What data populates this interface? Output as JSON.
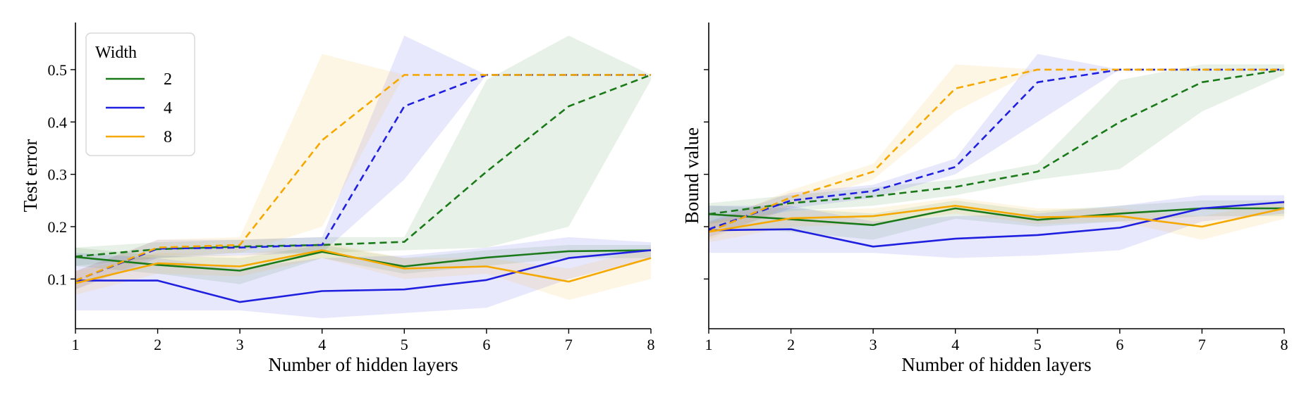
{
  "legend": {
    "title": "Width",
    "entries": [
      {
        "label": "2",
        "color": "#1a7a1a"
      },
      {
        "label": "4",
        "color": "#1f1fe0"
      },
      {
        "label": "8",
        "color": "#f5a800"
      }
    ],
    "placement": "top-left of left panel"
  },
  "chart_data": [
    {
      "type": "line",
      "xlabel": "Number of hidden layers",
      "ylabel": "Test error",
      "x": [
        1,
        2,
        3,
        4,
        5,
        6,
        7,
        8
      ],
      "xticks": [
        "1",
        "2",
        "3",
        "4",
        "5",
        "6",
        "7",
        "8"
      ],
      "yticks": [
        "0.1",
        "0.2",
        "0.3",
        "0.4",
        "0.5"
      ],
      "ytick_values": [
        0.1,
        0.2,
        0.3,
        0.4,
        0.5
      ],
      "xlim": [
        1,
        8
      ],
      "ylim": [
        0.005,
        0.59
      ],
      "grid": false,
      "series": [
        {
          "width": "2",
          "style": "solid",
          "color": "#1a7a1a",
          "values": [
            0.142,
            0.127,
            0.116,
            0.152,
            0.124,
            0.141,
            0.153,
            0.155
          ],
          "band_low": [
            0.125,
            0.11,
            0.09,
            0.14,
            0.11,
            0.125,
            0.14,
            0.14
          ],
          "band_high": [
            0.16,
            0.145,
            0.14,
            0.165,
            0.14,
            0.155,
            0.165,
            0.165
          ]
        },
        {
          "width": "2",
          "style": "dashed",
          "color": "#1a7a1a",
          "values": [
            0.143,
            0.157,
            0.162,
            0.165,
            0.171,
            0.305,
            0.43,
            0.49
          ],
          "band_low": [
            0.125,
            0.14,
            0.15,
            0.15,
            0.155,
            0.16,
            0.2,
            0.48
          ],
          "band_high": [
            0.16,
            0.17,
            0.175,
            0.18,
            0.18,
            0.48,
            0.565,
            0.49
          ]
        },
        {
          "width": "4",
          "style": "solid",
          "color": "#1f1fe0",
          "values": [
            0.097,
            0.097,
            0.056,
            0.077,
            0.08,
            0.098,
            0.14,
            0.155
          ],
          "band_low": [
            0.04,
            0.04,
            0.04,
            0.025,
            0.035,
            0.045,
            0.1,
            0.14
          ],
          "band_high": [
            0.15,
            0.14,
            0.12,
            0.14,
            0.145,
            0.16,
            0.18,
            0.17
          ]
        },
        {
          "width": "4",
          "style": "dashed",
          "color": "#1f1fe0",
          "values": [
            0.097,
            0.158,
            0.16,
            0.165,
            0.43,
            0.49,
            0.49,
            0.49
          ],
          "band_low": [
            0.08,
            0.14,
            0.145,
            0.15,
            0.29,
            0.49,
            0.49,
            0.49
          ],
          "band_high": [
            0.115,
            0.175,
            0.175,
            0.18,
            0.565,
            0.49,
            0.49,
            0.49
          ]
        },
        {
          "width": "8",
          "style": "solid",
          "color": "#f5a800",
          "values": [
            0.092,
            0.13,
            0.124,
            0.155,
            0.12,
            0.124,
            0.095,
            0.14
          ],
          "band_low": [
            0.07,
            0.11,
            0.105,
            0.14,
            0.1,
            0.11,
            0.06,
            0.1
          ],
          "band_high": [
            0.115,
            0.15,
            0.145,
            0.17,
            0.14,
            0.14,
            0.12,
            0.16
          ]
        },
        {
          "width": "8",
          "style": "dashed",
          "color": "#f5a800",
          "values": [
            0.097,
            0.16,
            0.165,
            0.365,
            0.49,
            0.49,
            0.49,
            0.49
          ],
          "band_low": [
            0.08,
            0.145,
            0.15,
            0.2,
            0.49,
            0.49,
            0.49,
            0.49
          ],
          "band_high": [
            0.115,
            0.175,
            0.18,
            0.53,
            0.49,
            0.49,
            0.49,
            0.49
          ]
        }
      ]
    },
    {
      "type": "line",
      "xlabel": "Number of hidden layers",
      "ylabel": "Bound value",
      "x": [
        1,
        2,
        3,
        4,
        5,
        6,
        7,
        8
      ],
      "xticks": [
        "1",
        "2",
        "3",
        "4",
        "5",
        "6",
        "7",
        "8"
      ],
      "yticks": [
        "",
        "",
        "",
        "",
        ""
      ],
      "ytick_values": [
        0.1,
        0.2,
        0.3,
        0.4,
        0.5
      ],
      "xlim": [
        1,
        8
      ],
      "ylim": [
        0.005,
        0.59
      ],
      "grid": false,
      "series": [
        {
          "width": "2",
          "style": "solid",
          "color": "#1a7a1a",
          "values": [
            0.224,
            0.214,
            0.203,
            0.235,
            0.213,
            0.225,
            0.235,
            0.235
          ],
          "band_low": [
            0.2,
            0.19,
            0.175,
            0.215,
            0.2,
            0.21,
            0.22,
            0.22
          ],
          "band_high": [
            0.24,
            0.235,
            0.225,
            0.25,
            0.23,
            0.24,
            0.25,
            0.25
          ]
        },
        {
          "width": "2",
          "style": "dashed",
          "color": "#1a7a1a",
          "values": [
            0.224,
            0.245,
            0.258,
            0.276,
            0.305,
            0.4,
            0.476,
            0.5
          ],
          "band_low": [
            0.205,
            0.23,
            0.24,
            0.26,
            0.29,
            0.31,
            0.42,
            0.49
          ],
          "band_high": [
            0.245,
            0.26,
            0.275,
            0.29,
            0.32,
            0.48,
            0.51,
            0.51
          ]
        },
        {
          "width": "4",
          "style": "solid",
          "color": "#1f1fe0",
          "values": [
            0.193,
            0.195,
            0.162,
            0.177,
            0.184,
            0.198,
            0.235,
            0.247
          ],
          "band_low": [
            0.15,
            0.15,
            0.15,
            0.14,
            0.145,
            0.155,
            0.21,
            0.225
          ],
          "band_high": [
            0.24,
            0.24,
            0.21,
            0.22,
            0.225,
            0.24,
            0.26,
            0.26
          ]
        },
        {
          "width": "4",
          "style": "dashed",
          "color": "#1f1fe0",
          "values": [
            0.195,
            0.25,
            0.268,
            0.314,
            0.476,
            0.5,
            0.5,
            0.5
          ],
          "band_low": [
            0.18,
            0.235,
            0.255,
            0.3,
            0.4,
            0.5,
            0.5,
            0.5
          ],
          "band_high": [
            0.21,
            0.265,
            0.28,
            0.33,
            0.53,
            0.5,
            0.5,
            0.5
          ]
        },
        {
          "width": "8",
          "style": "solid",
          "color": "#f5a800",
          "values": [
            0.19,
            0.216,
            0.22,
            0.24,
            0.218,
            0.22,
            0.2,
            0.235
          ],
          "band_low": [
            0.17,
            0.2,
            0.205,
            0.225,
            0.205,
            0.21,
            0.175,
            0.215
          ],
          "band_high": [
            0.21,
            0.23,
            0.235,
            0.255,
            0.235,
            0.235,
            0.22,
            0.25
          ]
        },
        {
          "width": "8",
          "style": "dashed",
          "color": "#f5a800",
          "values": [
            0.19,
            0.256,
            0.305,
            0.464,
            0.5,
            0.5,
            0.5,
            0.5
          ],
          "band_low": [
            0.175,
            0.24,
            0.29,
            0.42,
            0.5,
            0.5,
            0.5,
            0.5
          ],
          "band_high": [
            0.205,
            0.27,
            0.32,
            0.51,
            0.5,
            0.5,
            0.5,
            0.5
          ]
        }
      ]
    }
  ]
}
